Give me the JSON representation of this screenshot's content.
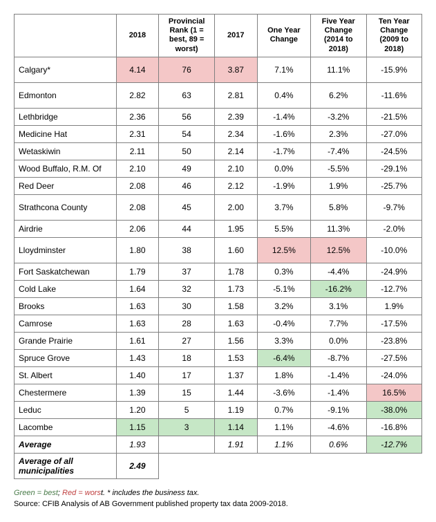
{
  "table": {
    "columns": [
      "",
      "2018",
      "Provincial Rank (1 = best, 89 = worst)",
      "2017",
      "One Year Change",
      "Five Year Change (2014 to 2018)",
      "Ten Year Change (2009 to 2018)"
    ],
    "rows": [
      {
        "name": "Calgary*",
        "v": [
          "4.14",
          "76",
          "3.87",
          "7.1%",
          "11.1%",
          "-15.9%"
        ],
        "hi": [
          "red",
          "red",
          "red",
          "",
          "",
          ""
        ],
        "tall": true
      },
      {
        "name": "Edmonton",
        "v": [
          "2.82",
          "63",
          "2.81",
          "0.4%",
          "6.2%",
          "-11.6%"
        ],
        "hi": [
          "",
          "",
          "",
          "",
          "",
          ""
        ],
        "tall": true
      },
      {
        "name": "Lethbridge",
        "v": [
          "2.36",
          "56",
          "2.39",
          "-1.4%",
          "-3.2%",
          "-21.5%"
        ],
        "hi": [
          "",
          "",
          "",
          "",
          "",
          ""
        ],
        "tall": false
      },
      {
        "name": "Medicine Hat",
        "v": [
          "2.31",
          "54",
          "2.34",
          "-1.6%",
          "2.3%",
          "-27.0%"
        ],
        "hi": [
          "",
          "",
          "",
          "",
          "",
          ""
        ],
        "tall": false
      },
      {
        "name": "Wetaskiwin",
        "v": [
          "2.11",
          "50",
          "2.14",
          "-1.7%",
          "-7.4%",
          "-24.5%"
        ],
        "hi": [
          "",
          "",
          "",
          "",
          "",
          ""
        ],
        "tall": false
      },
      {
        "name": "Wood Buffalo, R.M. Of",
        "v": [
          "2.10",
          "49",
          "2.10",
          "0.0%",
          "-5.5%",
          "-29.1%"
        ],
        "hi": [
          "",
          "",
          "",
          "",
          "",
          ""
        ],
        "tall": false
      },
      {
        "name": "Red Deer",
        "v": [
          "2.08",
          "46",
          "2.12",
          "-1.9%",
          "1.9%",
          "-25.7%"
        ],
        "hi": [
          "",
          "",
          "",
          "",
          "",
          ""
        ],
        "tall": false
      },
      {
        "name": "Strathcona County",
        "v": [
          "2.08",
          "45",
          "2.00",
          "3.7%",
          "5.8%",
          "-9.7%"
        ],
        "hi": [
          "",
          "",
          "",
          "",
          "",
          ""
        ],
        "tall": true
      },
      {
        "name": "Airdrie",
        "v": [
          "2.06",
          "44",
          "1.95",
          "5.5%",
          "11.3%",
          "-2.0%"
        ],
        "hi": [
          "",
          "",
          "",
          "",
          "",
          ""
        ],
        "tall": false
      },
      {
        "name": "Lloydminster",
        "v": [
          "1.80",
          "38",
          "1.60",
          "12.5%",
          "12.5%",
          "-10.0%"
        ],
        "hi": [
          "",
          "",
          "",
          "red",
          "red",
          ""
        ],
        "tall": true
      },
      {
        "name": "Fort Saskatchewan",
        "v": [
          "1.79",
          "37",
          "1.78",
          "0.3%",
          "-4.4%",
          "-24.9%"
        ],
        "hi": [
          "",
          "",
          "",
          "",
          "",
          ""
        ],
        "tall": false
      },
      {
        "name": "Cold Lake",
        "v": [
          "1.64",
          "32",
          "1.73",
          "-5.1%",
          "-16.2%",
          "-12.7%"
        ],
        "hi": [
          "",
          "",
          "",
          "",
          "green",
          ""
        ],
        "tall": false
      },
      {
        "name": "Brooks",
        "v": [
          "1.63",
          "30",
          "1.58",
          "3.2%",
          "3.1%",
          "1.9%"
        ],
        "hi": [
          "",
          "",
          "",
          "",
          "",
          ""
        ],
        "tall": false
      },
      {
        "name": "Camrose",
        "v": [
          "1.63",
          "28",
          "1.63",
          "-0.4%",
          "7.7%",
          "-17.5%"
        ],
        "hi": [
          "",
          "",
          "",
          "",
          "",
          ""
        ],
        "tall": false
      },
      {
        "name": "Grande Prairie",
        "v": [
          "1.61",
          "27",
          "1.56",
          "3.3%",
          "0.0%",
          "-23.8%"
        ],
        "hi": [
          "",
          "",
          "",
          "",
          "",
          ""
        ],
        "tall": false
      },
      {
        "name": "Spruce Grove",
        "v": [
          "1.43",
          "18",
          "1.53",
          "-6.4%",
          "-8.7%",
          "-27.5%"
        ],
        "hi": [
          "",
          "",
          "",
          "green",
          "",
          ""
        ],
        "tall": false
      },
      {
        "name": "St. Albert",
        "v": [
          "1.40",
          "17",
          "1.37",
          "1.8%",
          "-1.4%",
          "-24.0%"
        ],
        "hi": [
          "",
          "",
          "",
          "",
          "",
          ""
        ],
        "tall": false
      },
      {
        "name": "Chestermere",
        "v": [
          "1.39",
          "15",
          "1.44",
          "-3.6%",
          "-1.4%",
          "16.5%"
        ],
        "hi": [
          "",
          "",
          "",
          "",
          "",
          "red"
        ],
        "tall": false
      },
      {
        "name": "Leduc",
        "v": [
          "1.20",
          "5",
          "1.19",
          "0.7%",
          "-9.1%",
          "-38.0%"
        ],
        "hi": [
          "",
          "",
          "",
          "",
          "",
          "green"
        ],
        "tall": false
      },
      {
        "name": "Lacombe",
        "v": [
          "1.15",
          "3",
          "1.14",
          "1.1%",
          "-4.6%",
          "-16.8%"
        ],
        "hi": [
          "green",
          "green",
          "green",
          "",
          "",
          ""
        ],
        "tall": false
      }
    ],
    "average_row": {
      "name": "Average",
      "v": [
        "1.93",
        "",
        "1.91",
        "1.1%",
        "0.6%",
        "-12.7%"
      ],
      "hi": [
        "",
        "",
        "",
        "",
        "",
        "green"
      ]
    },
    "avg_all_row": {
      "name": "Average of all municipalities",
      "v": [
        "2.49"
      ]
    },
    "colors": {
      "red_fill": "#f4c7c7",
      "green_fill": "#c6e7c6",
      "border": "#7f7f7f",
      "bg": "#ffffff",
      "text": "#000000",
      "green_text": "#4a7c4a",
      "red_text": "#c04040"
    }
  },
  "footnote": {
    "green_label": "Green = best",
    "sep": ";  ",
    "red_label": "Red = wors",
    "tail": "t. * includes the business tax."
  },
  "source": "Source: CFIB Analysis of AB Government published property tax data 2009-2018."
}
